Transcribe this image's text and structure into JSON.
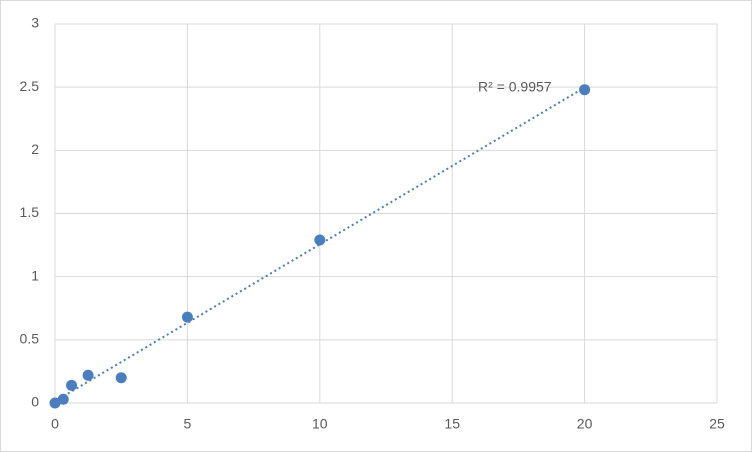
{
  "chart_data": {
    "type": "scatter",
    "x": [
      0,
      0.3125,
      0.625,
      1.25,
      2.5,
      5,
      10,
      20
    ],
    "values": [
      0,
      0.03,
      0.14,
      0.22,
      0.2,
      0.68,
      1.29,
      2.48
    ],
    "color": "#4a7ebf",
    "xlim": [
      0,
      25
    ],
    "xticks": [
      0,
      5,
      10,
      15,
      20,
      25
    ],
    "ylim": [
      0,
      3
    ],
    "yticks": [
      0,
      0.5,
      1,
      1.5,
      2,
      2.5,
      3
    ],
    "grid": true,
    "trendline": {
      "type": "linear",
      "label": "R² = 0.9957"
    }
  }
}
